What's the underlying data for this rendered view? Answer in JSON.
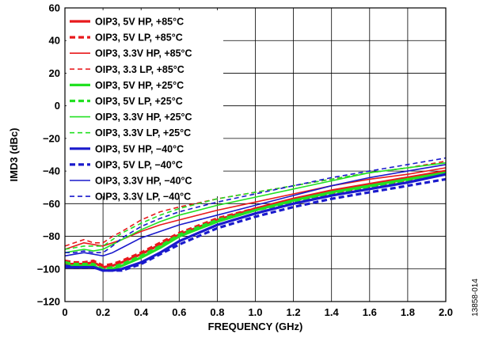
{
  "figure_id": "13858-014",
  "chart_data": {
    "type": "line",
    "xlabel": "FREQUENCY (GHz)",
    "ylabel": "IMD3 (dBc)",
    "xlim": [
      0,
      2.0
    ],
    "ylim": [
      -120,
      60
    ],
    "x_ticks": [
      "0",
      "0.2",
      "0.4",
      "0.6",
      "0.8",
      "1.0",
      "1.2",
      "1.4",
      "1.6",
      "1.8",
      "2.0"
    ],
    "y_ticks": [
      "60",
      "40",
      "20",
      "0",
      "−20",
      "−40",
      "−60",
      "−80",
      "−100",
      "−120"
    ],
    "grid": true,
    "legend_position": "top-left",
    "x": [
      0,
      0.05,
      0.1,
      0.15,
      0.2,
      0.25,
      0.3,
      0.4,
      0.5,
      0.6,
      0.8,
      1.0,
      1.2,
      1.4,
      1.6,
      1.8,
      2.0
    ],
    "series": [
      {
        "name": "OIP3, 5V HP, +85°C",
        "color": "#e8191c",
        "dash": "solid",
        "weight": "thick",
        "values": [
          -97,
          -97,
          -97,
          -96,
          -99,
          -98,
          -96,
          -91,
          -85,
          -79,
          -70,
          -63,
          -57,
          -52,
          -48,
          -44,
          -40
        ]
      },
      {
        "name": "OIP3, 5V LP, +85°C",
        "color": "#e8191c",
        "dash": "dashed",
        "weight": "thick",
        "values": [
          -95,
          -96,
          -96,
          -95,
          -98,
          -97,
          -95,
          -90,
          -84,
          -78,
          -69,
          -63,
          -58,
          -54,
          -50,
          -46,
          -41
        ]
      },
      {
        "name": "OIP3, 3.3V HP, +85°C",
        "color": "#e8191c",
        "dash": "solid",
        "weight": "thin",
        "values": [
          -88,
          -86,
          -84,
          -85,
          -86,
          -84,
          -82,
          -77,
          -73,
          -70,
          -64,
          -59,
          -54,
          -49,
          -45,
          -42,
          -38
        ]
      },
      {
        "name": "OIP3, 3.3 LP, +85°C",
        "color": "#e8191c",
        "dash": "dashed",
        "weight": "thin",
        "values": [
          -86,
          -84,
          -82,
          -84,
          -84,
          -80,
          -77,
          -70,
          -65,
          -62,
          -57,
          -53,
          -49,
          -45,
          -41,
          -38,
          -34
        ]
      },
      {
        "name": "OIP3, 5V HP, +25°C",
        "color": "#22e022",
        "dash": "solid",
        "weight": "thick",
        "values": [
          -98,
          -98,
          -98,
          -98,
          -101,
          -100,
          -98,
          -93,
          -87,
          -80,
          -71,
          -64,
          -58,
          -53,
          -49,
          -45,
          -41
        ]
      },
      {
        "name": "OIP3, 5V LP, +25°C",
        "color": "#22e022",
        "dash": "dashed",
        "weight": "thick",
        "values": [
          -96,
          -97,
          -97,
          -97,
          -100,
          -99,
          -97,
          -92,
          -86,
          -79,
          -70,
          -64,
          -59,
          -54,
          -50,
          -46,
          -42
        ]
      },
      {
        "name": "OIP3, 3.3V HP, +25°C",
        "color": "#22e022",
        "dash": "solid",
        "weight": "thin",
        "values": [
          -90,
          -89,
          -88,
          -89,
          -88,
          -85,
          -82,
          -76,
          -71,
          -67,
          -61,
          -56,
          -51,
          -46,
          -41,
          -38,
          -35
        ]
      },
      {
        "name": "OIP3, 3.3V LP, +25°C",
        "color": "#22e022",
        "dash": "dashed",
        "weight": "thin",
        "values": [
          -88,
          -87,
          -86,
          -86,
          -86,
          -82,
          -78,
          -72,
          -67,
          -63,
          -57,
          -53,
          -49,
          -45,
          -41,
          -38,
          -35
        ]
      },
      {
        "name": "OIP3, 5V HP, −40°C",
        "color": "#1a1acc",
        "dash": "solid",
        "weight": "thick",
        "values": [
          -99,
          -99,
          -99,
          -99,
          -101,
          -101,
          -100,
          -96,
          -90,
          -83,
          -73,
          -66,
          -60,
          -55,
          -51,
          -47,
          -42
        ]
      },
      {
        "name": "OIP3, 5V LP, −40°C",
        "color": "#1a1acc",
        "dash": "dashed",
        "weight": "thick",
        "values": [
          -98,
          -99,
          -99,
          -99,
          -101,
          -101,
          -101,
          -97,
          -91,
          -85,
          -75,
          -68,
          -62,
          -57,
          -53,
          -49,
          -45
        ]
      },
      {
        "name": "OIP3, 3.3V HP, −40°C",
        "color": "#1a1acc",
        "dash": "solid",
        "weight": "thin",
        "values": [
          -92,
          -91,
          -90,
          -91,
          -92,
          -90,
          -87,
          -81,
          -77,
          -73,
          -67,
          -61,
          -55,
          -49,
          -44,
          -40,
          -36
        ]
      },
      {
        "name": "OIP3, 3.3V LP, −40°C",
        "color": "#1a1acc",
        "dash": "dashed",
        "weight": "thin",
        "values": [
          -90,
          -90,
          -89,
          -90,
          -90,
          -86,
          -81,
          -74,
          -69,
          -65,
          -59,
          -54,
          -49,
          -44,
          -40,
          -36,
          -32
        ]
      }
    ]
  }
}
